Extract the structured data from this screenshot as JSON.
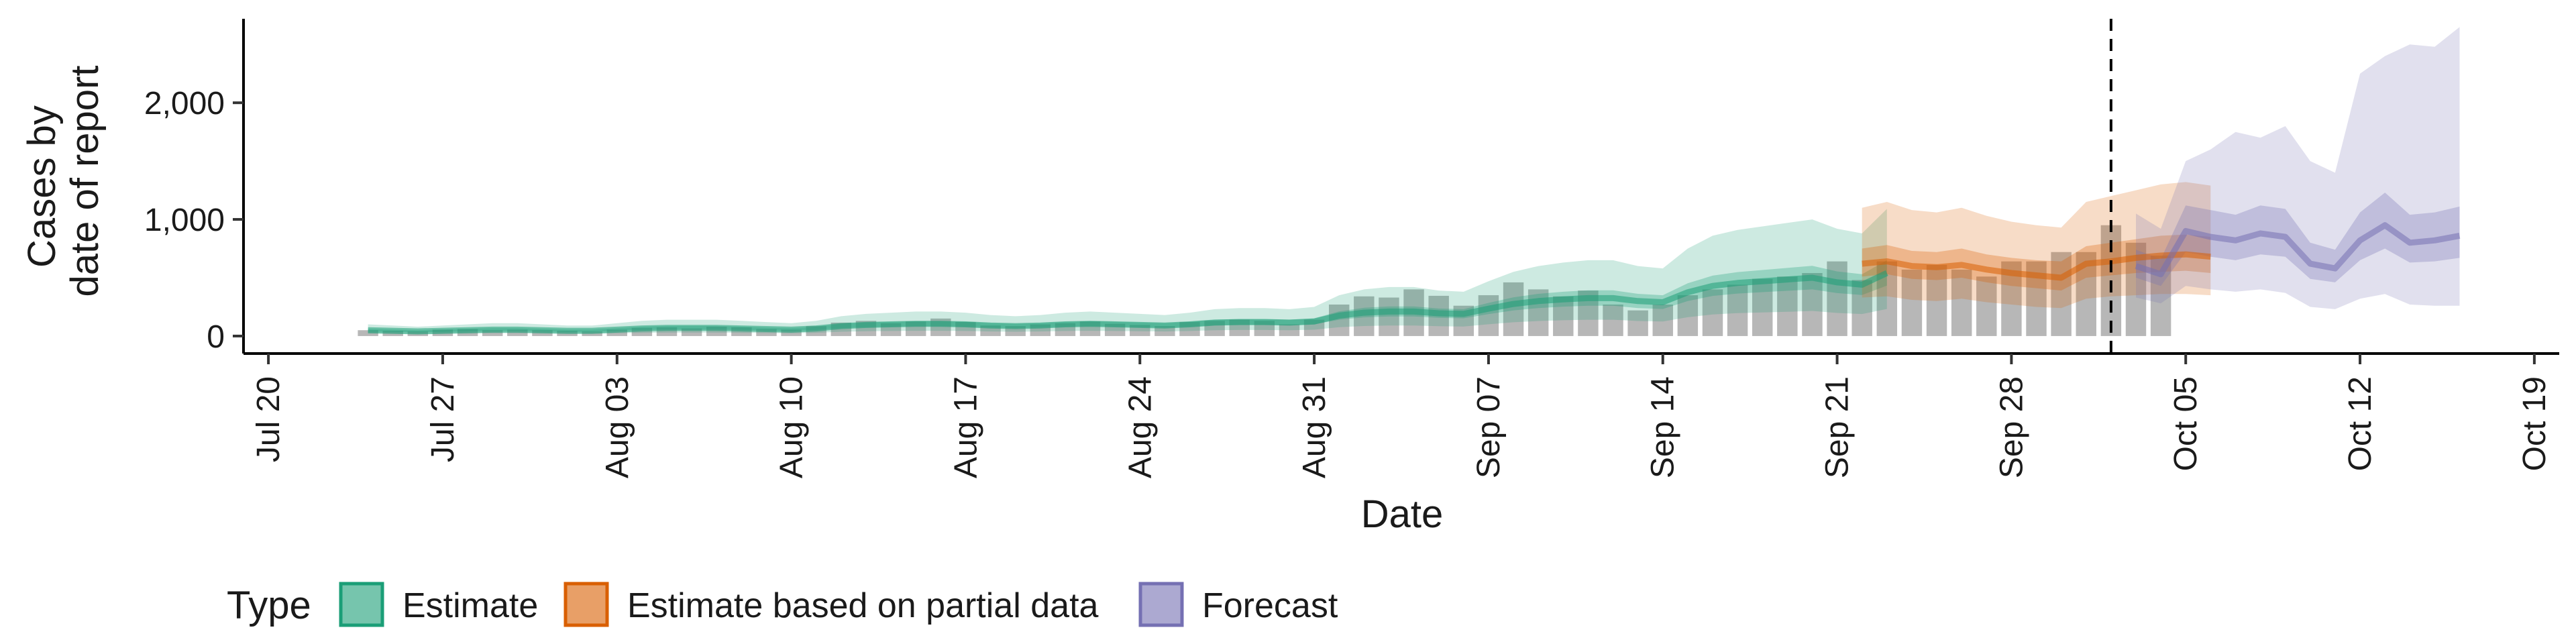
{
  "chart_data": {
    "type": "area",
    "title": "",
    "xlabel": "Date",
    "ylabel": [
      "Cases by",
      "date of report"
    ],
    "xlim": [
      "2020-07-19",
      "2020-10-20"
    ],
    "ylim": [
      -150,
      2720
    ],
    "x_ticks": [
      "2020-07-20",
      "2020-07-27",
      "2020-08-03",
      "2020-08-10",
      "2020-08-17",
      "2020-08-24",
      "2020-08-31",
      "2020-09-07",
      "2020-09-14",
      "2020-09-21",
      "2020-09-28",
      "2020-10-05",
      "2020-10-12",
      "2020-10-19"
    ],
    "x_tick_labels": [
      "Jul 20",
      "Jul 27",
      "Aug 03",
      "Aug 10",
      "Aug 17",
      "Aug 24",
      "Aug 31",
      "Sep 07",
      "Sep 14",
      "Sep 21",
      "Sep 28",
      "Oct 05",
      "Oct 12",
      "Oct 19"
    ],
    "y_ticks": [
      0,
      1000,
      2000
    ],
    "y_tick_labels": [
      "0",
      "1,000",
      "2,000"
    ],
    "grid": false,
    "legend_position": "bottom",
    "legend_title": "Type",
    "vline_date": "2020-10-02",
    "reported_cases": {
      "start": "2020-07-24",
      "values": [
        50,
        45,
        40,
        55,
        60,
        50,
        55,
        50,
        45,
        40,
        55,
        70,
        75,
        65,
        80,
        75,
        60,
        55,
        85,
        115,
        130,
        110,
        125,
        150,
        120,
        90,
        85,
        100,
        110,
        125,
        105,
        95,
        85,
        120,
        130,
        140,
        130,
        100,
        140,
        270,
        340,
        330,
        400,
        345,
        260,
        350,
        460,
        400,
        340,
        390,
        270,
        220,
        270,
        350,
        400,
        440,
        490,
        510,
        540,
        640,
        480,
        640,
        570,
        610,
        570,
        510,
        640,
        640,
        720,
        720,
        950,
        800,
        690
      ]
    },
    "series": [
      {
        "name": "Estimate",
        "color": "#1b9e77",
        "start": "2020-07-24",
        "median": [
          50,
          45,
          40,
          45,
          50,
          55,
          55,
          50,
          45,
          45,
          55,
          65,
          70,
          70,
          70,
          65,
          60,
          55,
          65,
          85,
          95,
          100,
          105,
          105,
          100,
          90,
          85,
          90,
          100,
          105,
          100,
          95,
          90,
          100,
          115,
          120,
          120,
          115,
          125,
          175,
          200,
          210,
          210,
          195,
          190,
          235,
          275,
          300,
          315,
          325,
          325,
          300,
          290,
          375,
          430,
          455,
          470,
          485,
          500,
          460,
          440,
          540
        ],
        "inner_lo": [
          38,
          36,
          32,
          36,
          40,
          44,
          44,
          40,
          36,
          36,
          44,
          52,
          56,
          56,
          56,
          52,
          48,
          44,
          52,
          68,
          76,
          80,
          84,
          84,
          80,
          72,
          68,
          72,
          80,
          84,
          80,
          76,
          72,
          80,
          92,
          96,
          96,
          92,
          100,
          140,
          160,
          168,
          168,
          156,
          152,
          188,
          220,
          240,
          252,
          260,
          260,
          240,
          232,
          300,
          344,
          364,
          376,
          388,
          400,
          368,
          352,
          432
        ],
        "inner_hi": [
          62,
          56,
          50,
          56,
          62,
          68,
          68,
          62,
          56,
          56,
          68,
          80,
          86,
          86,
          86,
          80,
          74,
          68,
          80,
          104,
          116,
          122,
          128,
          128,
          122,
          110,
          104,
          110,
          122,
          128,
          122,
          116,
          110,
          122,
          140,
          146,
          146,
          140,
          152,
          212,
          242,
          254,
          254,
          236,
          230,
          284,
          332,
          362,
          380,
          392,
          392,
          362,
          350,
          452,
          518,
          548,
          566,
          584,
          602,
          554,
          530,
          650
        ],
        "outer_lo": [
          22,
          20,
          18,
          20,
          22,
          24,
          24,
          22,
          20,
          20,
          24,
          28,
          30,
          30,
          30,
          28,
          26,
          24,
          28,
          37,
          41,
          43,
          45,
          45,
          43,
          39,
          37,
          39,
          43,
          45,
          43,
          41,
          39,
          43,
          50,
          52,
          52,
          50,
          54,
          76,
          86,
          90,
          90,
          84,
          82,
          101,
          118,
          129,
          135,
          140,
          140,
          129,
          125,
          161,
          185,
          196,
          202,
          208,
          215,
          198,
          189,
          232
        ],
        "outer_hi": [
          100,
          90,
          80,
          90,
          100,
          110,
          110,
          100,
          90,
          90,
          110,
          130,
          140,
          140,
          140,
          130,
          120,
          110,
          130,
          170,
          190,
          200,
          210,
          210,
          200,
          180,
          170,
          180,
          200,
          210,
          200,
          190,
          180,
          200,
          230,
          240,
          240,
          230,
          250,
          350,
          400,
          420,
          420,
          390,
          380,
          470,
          550,
          600,
          630,
          650,
          650,
          600,
          580,
          750,
          860,
          910,
          940,
          970,
          1000,
          920,
          880,
          1090
        ]
      },
      {
        "name": "Estimate based on partial data",
        "color": "#d95f02",
        "start": "2020-09-22",
        "median": [
          620,
          640,
          600,
          590,
          610,
          570,
          540,
          520,
          500,
          620,
          640,
          670,
          690,
          700,
          680
        ],
        "inner_lo": [
          510,
          530,
          490,
          480,
          500,
          460,
          430,
          410,
          390,
          500,
          520,
          540,
          550,
          560,
          540
        ],
        "inner_hi": [
          750,
          780,
          730,
          720,
          750,
          700,
          670,
          650,
          640,
          770,
          800,
          830,
          860,
          870,
          850
        ],
        "outer_lo": [
          330,
          340,
          310,
          300,
          320,
          290,
          270,
          250,
          240,
          320,
          340,
          350,
          360,
          360,
          350
        ],
        "outer_hi": [
          1100,
          1150,
          1080,
          1060,
          1100,
          1030,
          980,
          950,
          930,
          1150,
          1200,
          1250,
          1300,
          1320,
          1290
        ]
      },
      {
        "name": "Forecast",
        "color": "#7570b3",
        "start": "2020-10-03",
        "median": [
          600,
          530,
          900,
          850,
          820,
          880,
          850,
          620,
          580,
          820,
          950,
          800,
          820,
          860
        ],
        "inner_lo": [
          500,
          430,
          720,
          680,
          650,
          700,
          680,
          490,
          460,
          650,
          750,
          630,
          640,
          670
        ],
        "inner_hi": [
          740,
          660,
          1120,
          1080,
          1040,
          1120,
          1090,
          800,
          740,
          1060,
          1230,
          1040,
          1060,
          1110
        ],
        "outer_lo": [
          330,
          280,
          430,
          400,
          380,
          400,
          370,
          250,
          230,
          320,
          360,
          270,
          260,
          260
        ],
        "outer_hi": [
          1050,
          920,
          1500,
          1600,
          1750,
          1700,
          1800,
          1500,
          1400,
          2250,
          2400,
          2500,
          2480,
          2650
        ]
      }
    ]
  }
}
